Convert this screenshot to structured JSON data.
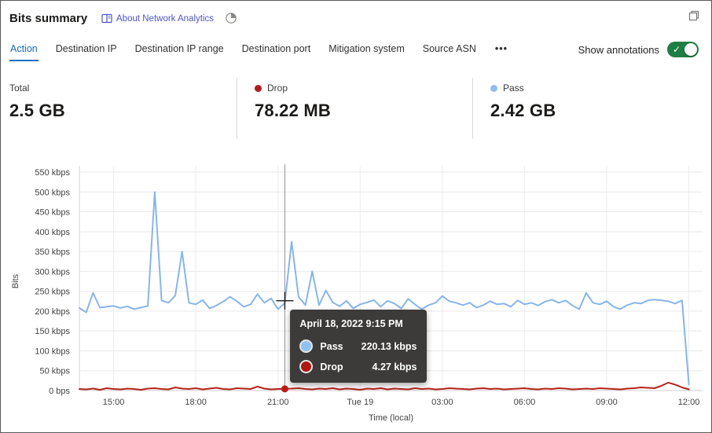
{
  "header": {
    "title": "Bits summary",
    "about_link": "About Network Analytics",
    "link_color": "#4e56c4"
  },
  "tabs": {
    "accent": "#0f6cbd",
    "items": [
      {
        "label": "Action",
        "active": true
      },
      {
        "label": "Destination IP",
        "active": false
      },
      {
        "label": "Destination IP range",
        "active": false
      },
      {
        "label": "Destination port",
        "active": false
      },
      {
        "label": "Mitigation system",
        "active": false
      },
      {
        "label": "Source ASN",
        "active": false
      }
    ],
    "overflow": "•••"
  },
  "annotations": {
    "label": "Show annotations",
    "enabled": true,
    "toggle_color": "#1e7e45",
    "check_glyph": "✓"
  },
  "stats": [
    {
      "label": "Total",
      "value": "2.5 GB",
      "dot_color": null
    },
    {
      "label": "Drop",
      "value": "78.22 MB",
      "dot_color": "#b01c1c"
    },
    {
      "label": "Pass",
      "value": "2.42 GB",
      "dot_color": "#8fbef0"
    }
  ],
  "chart_data": {
    "type": "line",
    "xlabel": "Time (local)",
    "ylabel": "Bits",
    "ylim": [
      0,
      550
    ],
    "xlim": [
      0,
      1365
    ],
    "x_start_min": 0,
    "x_step_min": 15,
    "grid": true,
    "y_ticks": [
      {
        "v": 0,
        "label": "0 bps"
      },
      {
        "v": 50,
        "label": "50 kbps"
      },
      {
        "v": 100,
        "label": "100 kbps"
      },
      {
        "v": 150,
        "label": "150 kbps"
      },
      {
        "v": 200,
        "label": "200 kbps"
      },
      {
        "v": 250,
        "label": "250 kbps"
      },
      {
        "v": 300,
        "label": "300 kbps"
      },
      {
        "v": 350,
        "label": "350 kbps"
      },
      {
        "v": 400,
        "label": "400 kbps"
      },
      {
        "v": 450,
        "label": "450 kbps"
      },
      {
        "v": 500,
        "label": "500 kbps"
      },
      {
        "v": 550,
        "label": "550 kbps"
      }
    ],
    "x_ticks": [
      {
        "min": 75,
        "label": "15:00"
      },
      {
        "min": 255,
        "label": "18:00"
      },
      {
        "min": 435,
        "label": "21:00"
      },
      {
        "min": 615,
        "label": "Tue 19"
      },
      {
        "min": 795,
        "label": "03:00"
      },
      {
        "min": 975,
        "label": "06:00"
      },
      {
        "min": 1155,
        "label": "09:00"
      },
      {
        "min": 1335,
        "label": "12:00"
      }
    ],
    "series": [
      {
        "name": "Pass",
        "color": "#88b5ea",
        "values": [
          208,
          197,
          246,
          209,
          211,
          213,
          208,
          212,
          205,
          209,
          213,
          500,
          227,
          221,
          239,
          350,
          221,
          217,
          228,
          207,
          214,
          224,
          236,
          225,
          211,
          217,
          243,
          221,
          232,
          205,
          220.13,
          375,
          236,
          215,
          300,
          215,
          252,
          222,
          212,
          226,
          207,
          217,
          222,
          228,
          211,
          226,
          219,
          207,
          231,
          217,
          205,
          215,
          221,
          238,
          225,
          221,
          215,
          221,
          209,
          215,
          225,
          217,
          219,
          211,
          227,
          217,
          221,
          214,
          224,
          229,
          221,
          227,
          214,
          205,
          246,
          221,
          217,
          225,
          211,
          205,
          215,
          221,
          219,
          227,
          229,
          227,
          225,
          219,
          227,
          15
        ]
      },
      {
        "name": "Drop",
        "color": "#b42318",
        "values": [
          4,
          3,
          5,
          2,
          6,
          4,
          3,
          5,
          4,
          2,
          5,
          6,
          4,
          3,
          8,
          5,
          4,
          6,
          3,
          5,
          7,
          4,
          3,
          6,
          5,
          4,
          10,
          5,
          3,
          4,
          4.27,
          5,
          6,
          4,
          3,
          5,
          4,
          6,
          3,
          5,
          4,
          2,
          5,
          4,
          6,
          3,
          5,
          4,
          3,
          6,
          4,
          5,
          3,
          4,
          6,
          5,
          4,
          3,
          5,
          6,
          4,
          5,
          3,
          4,
          5,
          6,
          4,
          3,
          5,
          4,
          6,
          5,
          3,
          4,
          5,
          4,
          6,
          5,
          4,
          3,
          5,
          6,
          8,
          7,
          6,
          12,
          20,
          15,
          8,
          3
        ]
      }
    ],
    "marker_color": "#b51c15",
    "hover": {
      "index": 30,
      "title": "April 18, 2022 9:15 PM",
      "rows": [
        {
          "name": "Pass",
          "value": "220.13 kbps",
          "color": "#8ec2f2"
        },
        {
          "name": "Drop",
          "value": "4.27 kbps",
          "color": "#ad1813"
        }
      ]
    }
  }
}
